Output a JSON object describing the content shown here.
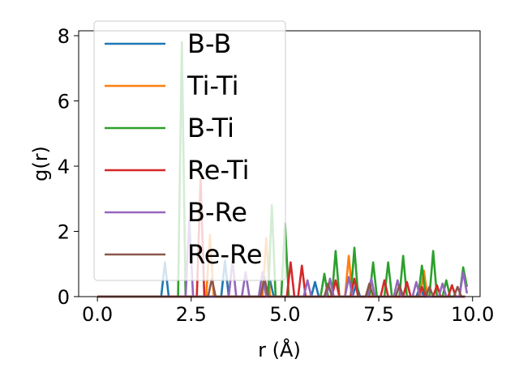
{
  "chart_data": {
    "type": "line",
    "xlabel": "r (Å)",
    "ylabel": "g(r)",
    "xlim": [
      -0.5,
      10.2
    ],
    "ylim": [
      0,
      8.15
    ],
    "xticks": [
      0.0,
      2.5,
      5.0,
      7.5,
      10.0
    ],
    "xtick_labels": [
      "0.0",
      "2.5",
      "5.0",
      "7.5",
      "10.0"
    ],
    "yticks": [
      0,
      2,
      4,
      6,
      8
    ],
    "ytick_labels": [
      "0",
      "2",
      "4",
      "6",
      "8"
    ],
    "grid": false,
    "legend_position": "top-left",
    "series": [
      {
        "name": "B-B",
        "color": "#1f77b4",
        "points": [
          [
            0,
            0
          ],
          [
            1.7,
            0
          ],
          [
            1.8,
            1.05
          ],
          [
            1.9,
            0
          ],
          [
            3.3,
            0
          ],
          [
            3.4,
            1.1
          ],
          [
            3.5,
            0
          ],
          [
            4.5,
            0
          ],
          [
            4.6,
            0.5
          ],
          [
            4.7,
            0
          ],
          [
            5.7,
            0
          ],
          [
            5.8,
            0.45
          ],
          [
            5.9,
            0
          ],
          [
            6.8,
            0
          ],
          [
            6.9,
            0.4
          ],
          [
            7.0,
            0
          ],
          [
            8.5,
            0
          ],
          [
            8.6,
            0.3
          ],
          [
            8.7,
            0
          ],
          [
            9.8,
            0
          ]
        ]
      },
      {
        "name": "Ti-Ti",
        "color": "#ff7f0e",
        "points": [
          [
            0,
            0
          ],
          [
            2.9,
            0
          ],
          [
            3.0,
            1.9
          ],
          [
            3.1,
            0
          ],
          [
            4.4,
            0
          ],
          [
            4.5,
            1.8
          ],
          [
            4.6,
            0
          ],
          [
            6.6,
            0
          ],
          [
            6.7,
            1.25
          ],
          [
            6.8,
            0
          ],
          [
            8.6,
            0
          ],
          [
            8.7,
            0.8
          ],
          [
            8.8,
            0
          ],
          [
            9.8,
            0
          ]
        ]
      },
      {
        "name": "B-Ti",
        "color": "#2ca02c",
        "points": [
          [
            0,
            0
          ],
          [
            2.15,
            0
          ],
          [
            2.25,
            7.8
          ],
          [
            2.35,
            0
          ],
          [
            4.55,
            0
          ],
          [
            4.65,
            2.8
          ],
          [
            4.75,
            0
          ],
          [
            4.9,
            0
          ],
          [
            5.0,
            2.25
          ],
          [
            5.1,
            0
          ],
          [
            5.95,
            0
          ],
          [
            6.05,
            0.7
          ],
          [
            6.15,
            0
          ],
          [
            6.25,
            0
          ],
          [
            6.35,
            1.4
          ],
          [
            6.45,
            0
          ],
          [
            6.75,
            0
          ],
          [
            6.85,
            1.5
          ],
          [
            6.95,
            0
          ],
          [
            7.25,
            0
          ],
          [
            7.35,
            1.05
          ],
          [
            7.45,
            0
          ],
          [
            7.65,
            0
          ],
          [
            7.75,
            1.05
          ],
          [
            7.85,
            0
          ],
          [
            8.05,
            0
          ],
          [
            8.15,
            1.25
          ],
          [
            8.25,
            0
          ],
          [
            8.55,
            0
          ],
          [
            8.65,
            0.95
          ],
          [
            8.75,
            0
          ],
          [
            8.85,
            0
          ],
          [
            8.95,
            1.4
          ],
          [
            9.05,
            0
          ],
          [
            9.2,
            0
          ],
          [
            9.3,
            0.5
          ],
          [
            9.4,
            0
          ],
          [
            9.65,
            0
          ],
          [
            9.75,
            0.9
          ],
          [
            9.85,
            0.3
          ]
        ]
      },
      {
        "name": "Re-Ti",
        "color": "#d62728",
        "points": [
          [
            0,
            0
          ],
          [
            2.65,
            0
          ],
          [
            2.75,
            3.6
          ],
          [
            2.85,
            0
          ],
          [
            5.05,
            0
          ],
          [
            5.15,
            1.05
          ],
          [
            5.25,
            0
          ],
          [
            5.35,
            0
          ],
          [
            5.45,
            0.95
          ],
          [
            5.55,
            0
          ],
          [
            6.25,
            0
          ],
          [
            6.35,
            0.5
          ],
          [
            6.45,
            0
          ],
          [
            6.75,
            0
          ],
          [
            6.85,
            0.55
          ],
          [
            6.95,
            0
          ],
          [
            7.55,
            0
          ],
          [
            7.65,
            0.5
          ],
          [
            7.75,
            0
          ],
          [
            8.15,
            0
          ],
          [
            8.25,
            0.45
          ],
          [
            8.35,
            0
          ],
          [
            8.55,
            0
          ],
          [
            8.65,
            0.3
          ],
          [
            8.75,
            0
          ],
          [
            8.95,
            0
          ],
          [
            9.05,
            0.35
          ],
          [
            9.15,
            0
          ],
          [
            9.35,
            0
          ],
          [
            9.45,
            0.35
          ],
          [
            9.55,
            0
          ],
          [
            9.8,
            0
          ]
        ]
      },
      {
        "name": "B-Re",
        "color": "#9467bd",
        "points": [
          [
            0,
            0
          ],
          [
            2.35,
            0
          ],
          [
            2.45,
            2.35
          ],
          [
            2.55,
            0
          ],
          [
            3.5,
            0
          ],
          [
            3.6,
            1.1
          ],
          [
            3.7,
            0
          ],
          [
            3.85,
            0
          ],
          [
            3.95,
            0.75
          ],
          [
            4.05,
            0
          ],
          [
            4.3,
            0
          ],
          [
            4.4,
            0.75
          ],
          [
            4.5,
            0
          ],
          [
            5.5,
            0
          ],
          [
            5.6,
            0.5
          ],
          [
            5.7,
            0
          ],
          [
            6.1,
            0
          ],
          [
            6.2,
            0.55
          ],
          [
            6.3,
            0
          ],
          [
            6.6,
            0
          ],
          [
            6.7,
            0.6
          ],
          [
            6.8,
            0
          ],
          [
            7.2,
            0
          ],
          [
            7.3,
            0.55
          ],
          [
            7.4,
            0
          ],
          [
            7.9,
            0
          ],
          [
            8.0,
            0.5
          ],
          [
            8.1,
            0
          ],
          [
            8.4,
            0
          ],
          [
            8.5,
            0.45
          ],
          [
            8.6,
            0
          ],
          [
            9.1,
            0
          ],
          [
            9.2,
            0.4
          ],
          [
            9.3,
            0
          ],
          [
            9.65,
            0
          ],
          [
            9.75,
            0.75
          ],
          [
            9.85,
            0.1
          ]
        ]
      },
      {
        "name": "Re-Re",
        "color": "#8c564b",
        "points": [
          [
            0,
            0
          ],
          [
            2.95,
            0
          ],
          [
            3.05,
            0.55
          ],
          [
            3.15,
            0
          ],
          [
            4.35,
            0
          ],
          [
            4.45,
            0.6
          ],
          [
            4.55,
            0
          ],
          [
            6.05,
            0
          ],
          [
            6.15,
            0.4
          ],
          [
            6.25,
            0
          ],
          [
            7.15,
            0
          ],
          [
            7.25,
            0.4
          ],
          [
            7.35,
            0
          ],
          [
            7.95,
            0
          ],
          [
            8.05,
            0.35
          ],
          [
            8.15,
            0
          ],
          [
            8.75,
            0
          ],
          [
            8.85,
            0.3
          ],
          [
            8.95,
            0
          ],
          [
            9.5,
            0
          ],
          [
            9.6,
            0.3
          ],
          [
            9.7,
            0
          ],
          [
            9.8,
            0
          ]
        ]
      }
    ]
  }
}
